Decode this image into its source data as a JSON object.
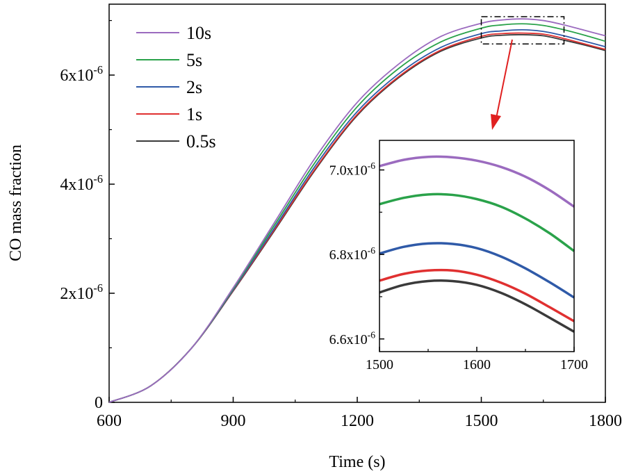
{
  "chart_data": [
    {
      "type": "line",
      "title": "",
      "xlabel": "Time (s)",
      "ylabel": "CO mass fraction",
      "xlim": [
        600,
        1800
      ],
      "ylim": [
        0,
        7.3e-06
      ],
      "grid": false,
      "legend_position": "top-left",
      "x_ticks": [
        600,
        900,
        1200,
        1500,
        1800
      ],
      "x_tick_labels": [
        "600",
        "900",
        "1200",
        "1500",
        "1800"
      ],
      "y_ticks": [
        0,
        2e-06,
        4e-06,
        6e-06
      ],
      "y_tick_labels": [
        {
          "base": "0",
          "exp": ""
        },
        {
          "base": "2x10",
          "exp": "-6"
        },
        {
          "base": "4x10",
          "exp": "-6"
        },
        {
          "base": "6x10",
          "exp": "-6"
        }
      ],
      "x": [
        600,
        700,
        800,
        900,
        1000,
        1100,
        1200,
        1300,
        1400,
        1500,
        1550,
        1600,
        1650,
        1700,
        1750,
        1800
      ],
      "series": [
        {
          "name": "10s",
          "color": "#9b6bbf",
          "values": [
            0,
            3e-07,
            1e-06,
            2.1e-06,
            3.3e-06,
            4.5e-06,
            5.5e-06,
            6.2e-06,
            6.7e-06,
            6.95e-06,
            7.01e-06,
            7.03e-06,
            7e-06,
            6.92e-06,
            6.82e-06,
            6.72e-06
          ]
        },
        {
          "name": "5s",
          "color": "#2aa24a",
          "values": [
            0,
            3e-07,
            1e-06,
            2.08e-06,
            3.25e-06,
            4.42e-06,
            5.42e-06,
            6.12e-06,
            6.6e-06,
            6.86e-06,
            6.92e-06,
            6.94e-06,
            6.91e-06,
            6.83e-06,
            6.73e-06,
            6.62e-06
          ]
        },
        {
          "name": "2s",
          "color": "#2f5aa8",
          "values": [
            0,
            3e-07,
            1e-06,
            2.06e-06,
            3.2e-06,
            4.35e-06,
            5.33e-06,
            6.02e-06,
            6.5e-06,
            6.76e-06,
            6.81e-06,
            6.83e-06,
            6.8e-06,
            6.72e-06,
            6.62e-06,
            6.52e-06
          ]
        },
        {
          "name": "1s",
          "color": "#e03030",
          "values": [
            0,
            3e-07,
            1e-06,
            2.05e-06,
            3.17e-06,
            4.3e-06,
            5.28e-06,
            5.97e-06,
            6.45e-06,
            6.71e-06,
            6.76e-06,
            6.77e-06,
            6.75e-06,
            6.67e-06,
            6.57e-06,
            6.47e-06
          ]
        },
        {
          "name": "0.5s",
          "color": "#3a3a3a",
          "values": [
            0,
            3e-07,
            1e-06,
            2.04e-06,
            3.15e-06,
            4.28e-06,
            5.26e-06,
            5.95e-06,
            6.43e-06,
            6.68e-06,
            6.73e-06,
            6.74e-06,
            6.72e-06,
            6.64e-06,
            6.55e-06,
            6.45e-06
          ]
        }
      ]
    },
    {
      "type": "line",
      "title": "",
      "xlabel": "",
      "ylabel": "",
      "xlim": [
        1500,
        1700
      ],
      "ylim": [
        6.57e-06,
        7.07e-06
      ],
      "grid": false,
      "x_ticks": [
        1500,
        1600,
        1700
      ],
      "x_tick_labels": [
        "1500",
        "1600",
        "1700"
      ],
      "y_ticks": [
        6.6e-06,
        6.8e-06,
        7e-06
      ],
      "y_tick_labels": [
        {
          "base": "6.6x10",
          "exp": "-6"
        },
        {
          "base": "6.8x10",
          "exp": "-6"
        },
        {
          "base": "7.0x10",
          "exp": "-6"
        }
      ],
      "x": [
        1500,
        1525,
        1550,
        1575,
        1600,
        1625,
        1650,
        1675,
        1700
      ],
      "series": [
        {
          "name": "10s",
          "color": "#9b6bbf",
          "values": [
            7.009e-06,
            7.024e-06,
            7.031e-06,
            7.03e-06,
            7.022e-06,
            7.007e-06,
            6.984e-06,
            6.952e-06,
            6.913e-06
          ]
        },
        {
          "name": "5s",
          "color": "#2aa24a",
          "values": [
            6.919e-06,
            6.934e-06,
            6.942e-06,
            6.941e-06,
            6.931e-06,
            6.913e-06,
            6.885e-06,
            6.85e-06,
            6.808e-06
          ]
        },
        {
          "name": "2s",
          "color": "#2f5aa8",
          "values": [
            6.802e-06,
            6.818e-06,
            6.826e-06,
            6.825e-06,
            6.815e-06,
            6.795e-06,
            6.767e-06,
            6.734e-06,
            6.698e-06
          ]
        },
        {
          "name": "1s",
          "color": "#e03030",
          "values": [
            6.738e-06,
            6.754e-06,
            6.762e-06,
            6.762e-06,
            6.752e-06,
            6.733e-06,
            6.707e-06,
            6.675e-06,
            6.642e-06
          ]
        },
        {
          "name": "0.5s",
          "color": "#3a3a3a",
          "values": [
            6.71e-06,
            6.728e-06,
            6.737e-06,
            6.737e-06,
            6.728e-06,
            6.709e-06,
            6.682e-06,
            6.65e-06,
            6.617e-06
          ]
        }
      ]
    }
  ],
  "annotation": {
    "zoom_box": {
      "x_range": [
        1500,
        1700
      ],
      "y_range": [
        6.57e-06,
        7.07e-06
      ]
    },
    "arrow_color": "#e02020",
    "box_color": "#000000"
  }
}
